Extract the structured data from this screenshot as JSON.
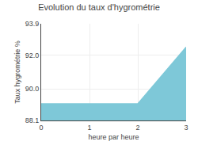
{
  "chart_data": {
    "type": "area",
    "title": "Evolution du taux d'hygrométrie",
    "xlabel": "heure par heure",
    "ylabel": "Taux hygrométrie %",
    "x": [
      0,
      1,
      2,
      3
    ],
    "values": [
      89.1,
      89.1,
      89.1,
      92.5
    ],
    "color": "#7ec8d8",
    "xlim": [
      0,
      3
    ],
    "xticks": [
      0,
      1,
      2,
      3
    ],
    "ylim": [
      88.1,
      93.9
    ],
    "yticks": [
      88.1,
      {
        "value": 90.0,
        "label": "90.0"
      },
      {
        "value": 92.0,
        "label": "92.0"
      },
      93.9
    ],
    "grid": true
  }
}
